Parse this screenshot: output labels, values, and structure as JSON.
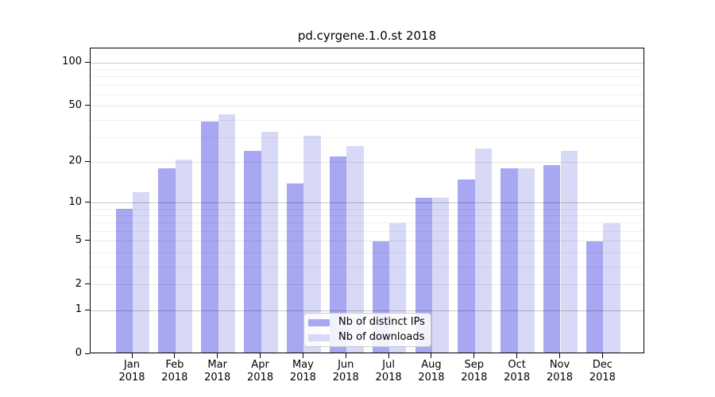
{
  "chart_data": {
    "type": "bar",
    "title": "pd.cyrgene.1.0.st 2018",
    "categories": [
      "Jan",
      "Feb",
      "Mar",
      "Apr",
      "May",
      "Jun",
      "Jul",
      "Aug",
      "Sep",
      "Oct",
      "Nov",
      "Dec"
    ],
    "category_year_line": "2018",
    "series": [
      {
        "name": "Nb of distinct IPs",
        "color": "#a8a8f2",
        "values": [
          9,
          18,
          39,
          24,
          14,
          22,
          5,
          11,
          15,
          18,
          19,
          5
        ]
      },
      {
        "name": "Nb of downloads",
        "color": "#d8d8f7",
        "values": [
          12,
          21,
          44,
          33,
          31,
          26,
          7,
          11,
          25,
          18,
          24,
          7
        ]
      }
    ],
    "yaxis": {
      "scale": "log1p",
      "tick_labels": [
        "0",
        "1",
        "2",
        "5",
        "10",
        "20",
        "50",
        "100"
      ],
      "tick_values": [
        0,
        1,
        2,
        5,
        10,
        20,
        50,
        100
      ],
      "ylim": [
        0,
        127
      ]
    },
    "xlabel": "",
    "ylabel": "",
    "grid": "horizontal, minor log gridlines on",
    "legend_position": "inside bottom-center"
  }
}
